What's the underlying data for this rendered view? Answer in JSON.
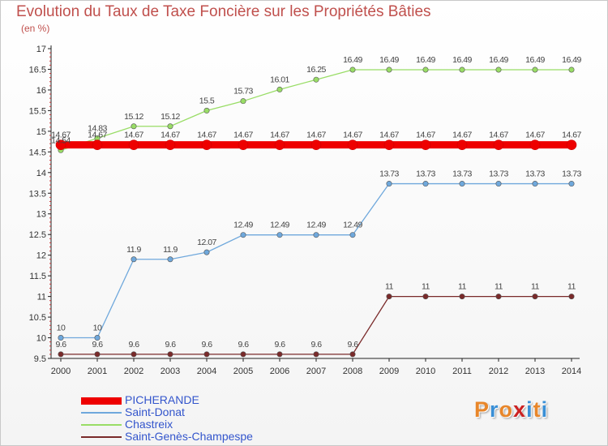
{
  "title": "Evolution du Taux de Taxe Foncière sur les Propriétés Bâties",
  "unit_label": "(en %)",
  "logo": {
    "text": "Proxiti",
    "colors": [
      "#e8862a",
      "#3a8fd6",
      "#e8862a",
      "#cc2222",
      "#3a8fd6",
      "#e8862a",
      "#3a8fd6"
    ]
  },
  "chart_data": {
    "type": "line",
    "x": [
      "2000",
      "2001",
      "2002",
      "2003",
      "2004",
      "2005",
      "2006",
      "2007",
      "2008",
      "2009",
      "2010",
      "2011",
      "2012",
      "2013",
      "2014"
    ],
    "ylim": [
      9.5,
      17
    ],
    "yticks": [
      "9.5",
      "10",
      "10.5",
      "11",
      "11.5",
      "12",
      "12.5",
      "13",
      "13.5",
      "14",
      "14.5",
      "15",
      "15.5",
      "16",
      "16.5",
      "17"
    ],
    "grid": false,
    "legend": "bottom-left",
    "series": [
      {
        "name": "Saint-Genès-Champespe",
        "color": "#7a2a2a",
        "values": [
          9.6,
          9.6,
          9.6,
          9.6,
          9.6,
          9.6,
          9.6,
          9.6,
          9.6,
          11,
          11,
          11,
          11,
          11,
          11
        ],
        "labels": [
          "9.6",
          "9.6",
          "9.6",
          "9.6",
          "9.6",
          "9.6",
          "9.6",
          "9.6",
          "9.6",
          "11",
          "11",
          "11",
          "11",
          "11",
          "11"
        ]
      },
      {
        "name": "Saint-Donat",
        "color": "#6fa8dc",
        "values": [
          10,
          10,
          11.9,
          11.9,
          12.07,
          12.49,
          12.49,
          12.49,
          12.49,
          13.73,
          13.73,
          13.73,
          13.73,
          13.73,
          13.73
        ],
        "labels": [
          "10",
          "10",
          "11.9",
          "11.9",
          "12.07",
          "12.49",
          "12.49",
          "12.49",
          "12.49",
          "13.73",
          "13.73",
          "13.73",
          "13.73",
          "13.73",
          "13.73"
        ]
      },
      {
        "name": "Chastreix",
        "color": "#99dd66",
        "values": [
          14.54,
          14.83,
          15.12,
          15.12,
          15.5,
          15.73,
          16.01,
          16.25,
          16.49,
          16.49,
          16.49,
          16.49,
          16.49,
          16.49,
          16.49
        ],
        "labels": [
          "14.54",
          "14.83",
          "15.12",
          "15.12",
          "15.5",
          "15.73",
          "16.01",
          "16.25",
          "16.49",
          "16.49",
          "16.49",
          "16.49",
          "16.49",
          "16.49",
          "16.49"
        ]
      },
      {
        "name": "PICHERANDE",
        "color": "#ee0000",
        "values": [
          14.67,
          14.67,
          14.67,
          14.67,
          14.67,
          14.67,
          14.67,
          14.67,
          14.67,
          14.67,
          14.67,
          14.67,
          14.67,
          14.67,
          14.67
        ],
        "labels": [
          "14.67",
          "14.67",
          "14.67",
          "14.67",
          "14.67",
          "14.67",
          "14.67",
          "14.67",
          "14.67",
          "14.67",
          "14.67",
          "14.67",
          "14.67",
          "14.67",
          "14.67"
        ]
      }
    ],
    "legend_order": [
      3,
      1,
      2,
      0
    ]
  }
}
